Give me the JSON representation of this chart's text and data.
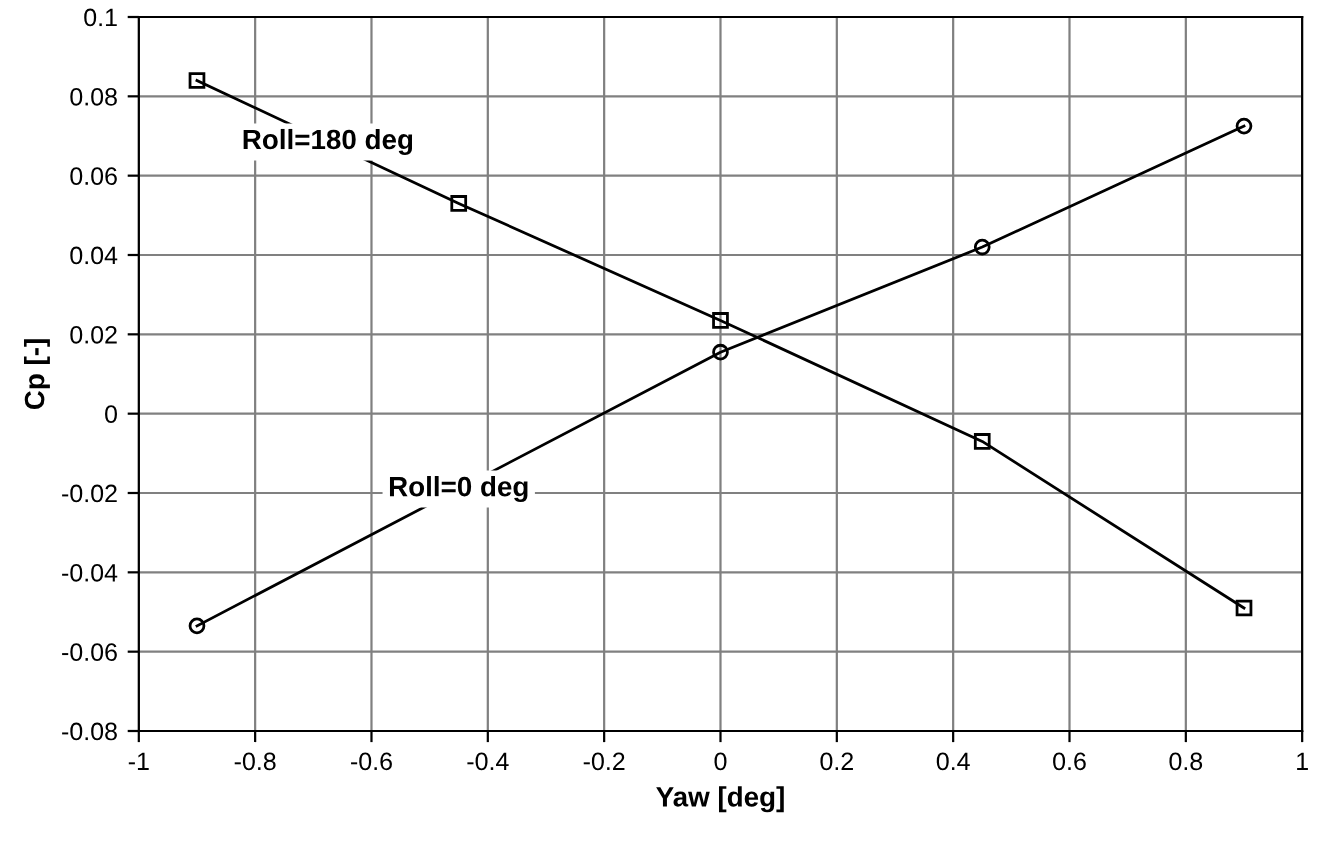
{
  "chart_data": {
    "type": "line",
    "xlabel": "Yaw [deg]",
    "ylabel": "Cp [-]",
    "xlim": [
      -1,
      1
    ],
    "xticks": [
      -1,
      -0.8,
      -0.6,
      -0.4,
      -0.2,
      0,
      0.2,
      0.4,
      0.6,
      0.8,
      1
    ],
    "ylim": [
      -0.08,
      0.1
    ],
    "yticks": [
      -0.08,
      -0.06,
      -0.04,
      -0.02,
      0,
      0.02,
      0.04,
      0.06,
      0.08,
      0.1
    ],
    "grid": true,
    "line_style": "solid",
    "series": [
      {
        "name": "Roll=0 deg",
        "color": "#000000",
        "marker": "circle",
        "x": [
          -0.9,
          0,
          0.45,
          0.9
        ],
        "values": [
          -0.0535,
          0.0155,
          0.042,
          0.0725
        ]
      },
      {
        "name": "Roll=180 deg",
        "color": "#000000",
        "marker": "square",
        "x": [
          -0.9,
          -0.45,
          0,
          0.45,
          0.9
        ],
        "values": [
          0.084,
          0.053,
          0.0235,
          -0.007,
          -0.049
        ]
      }
    ]
  }
}
